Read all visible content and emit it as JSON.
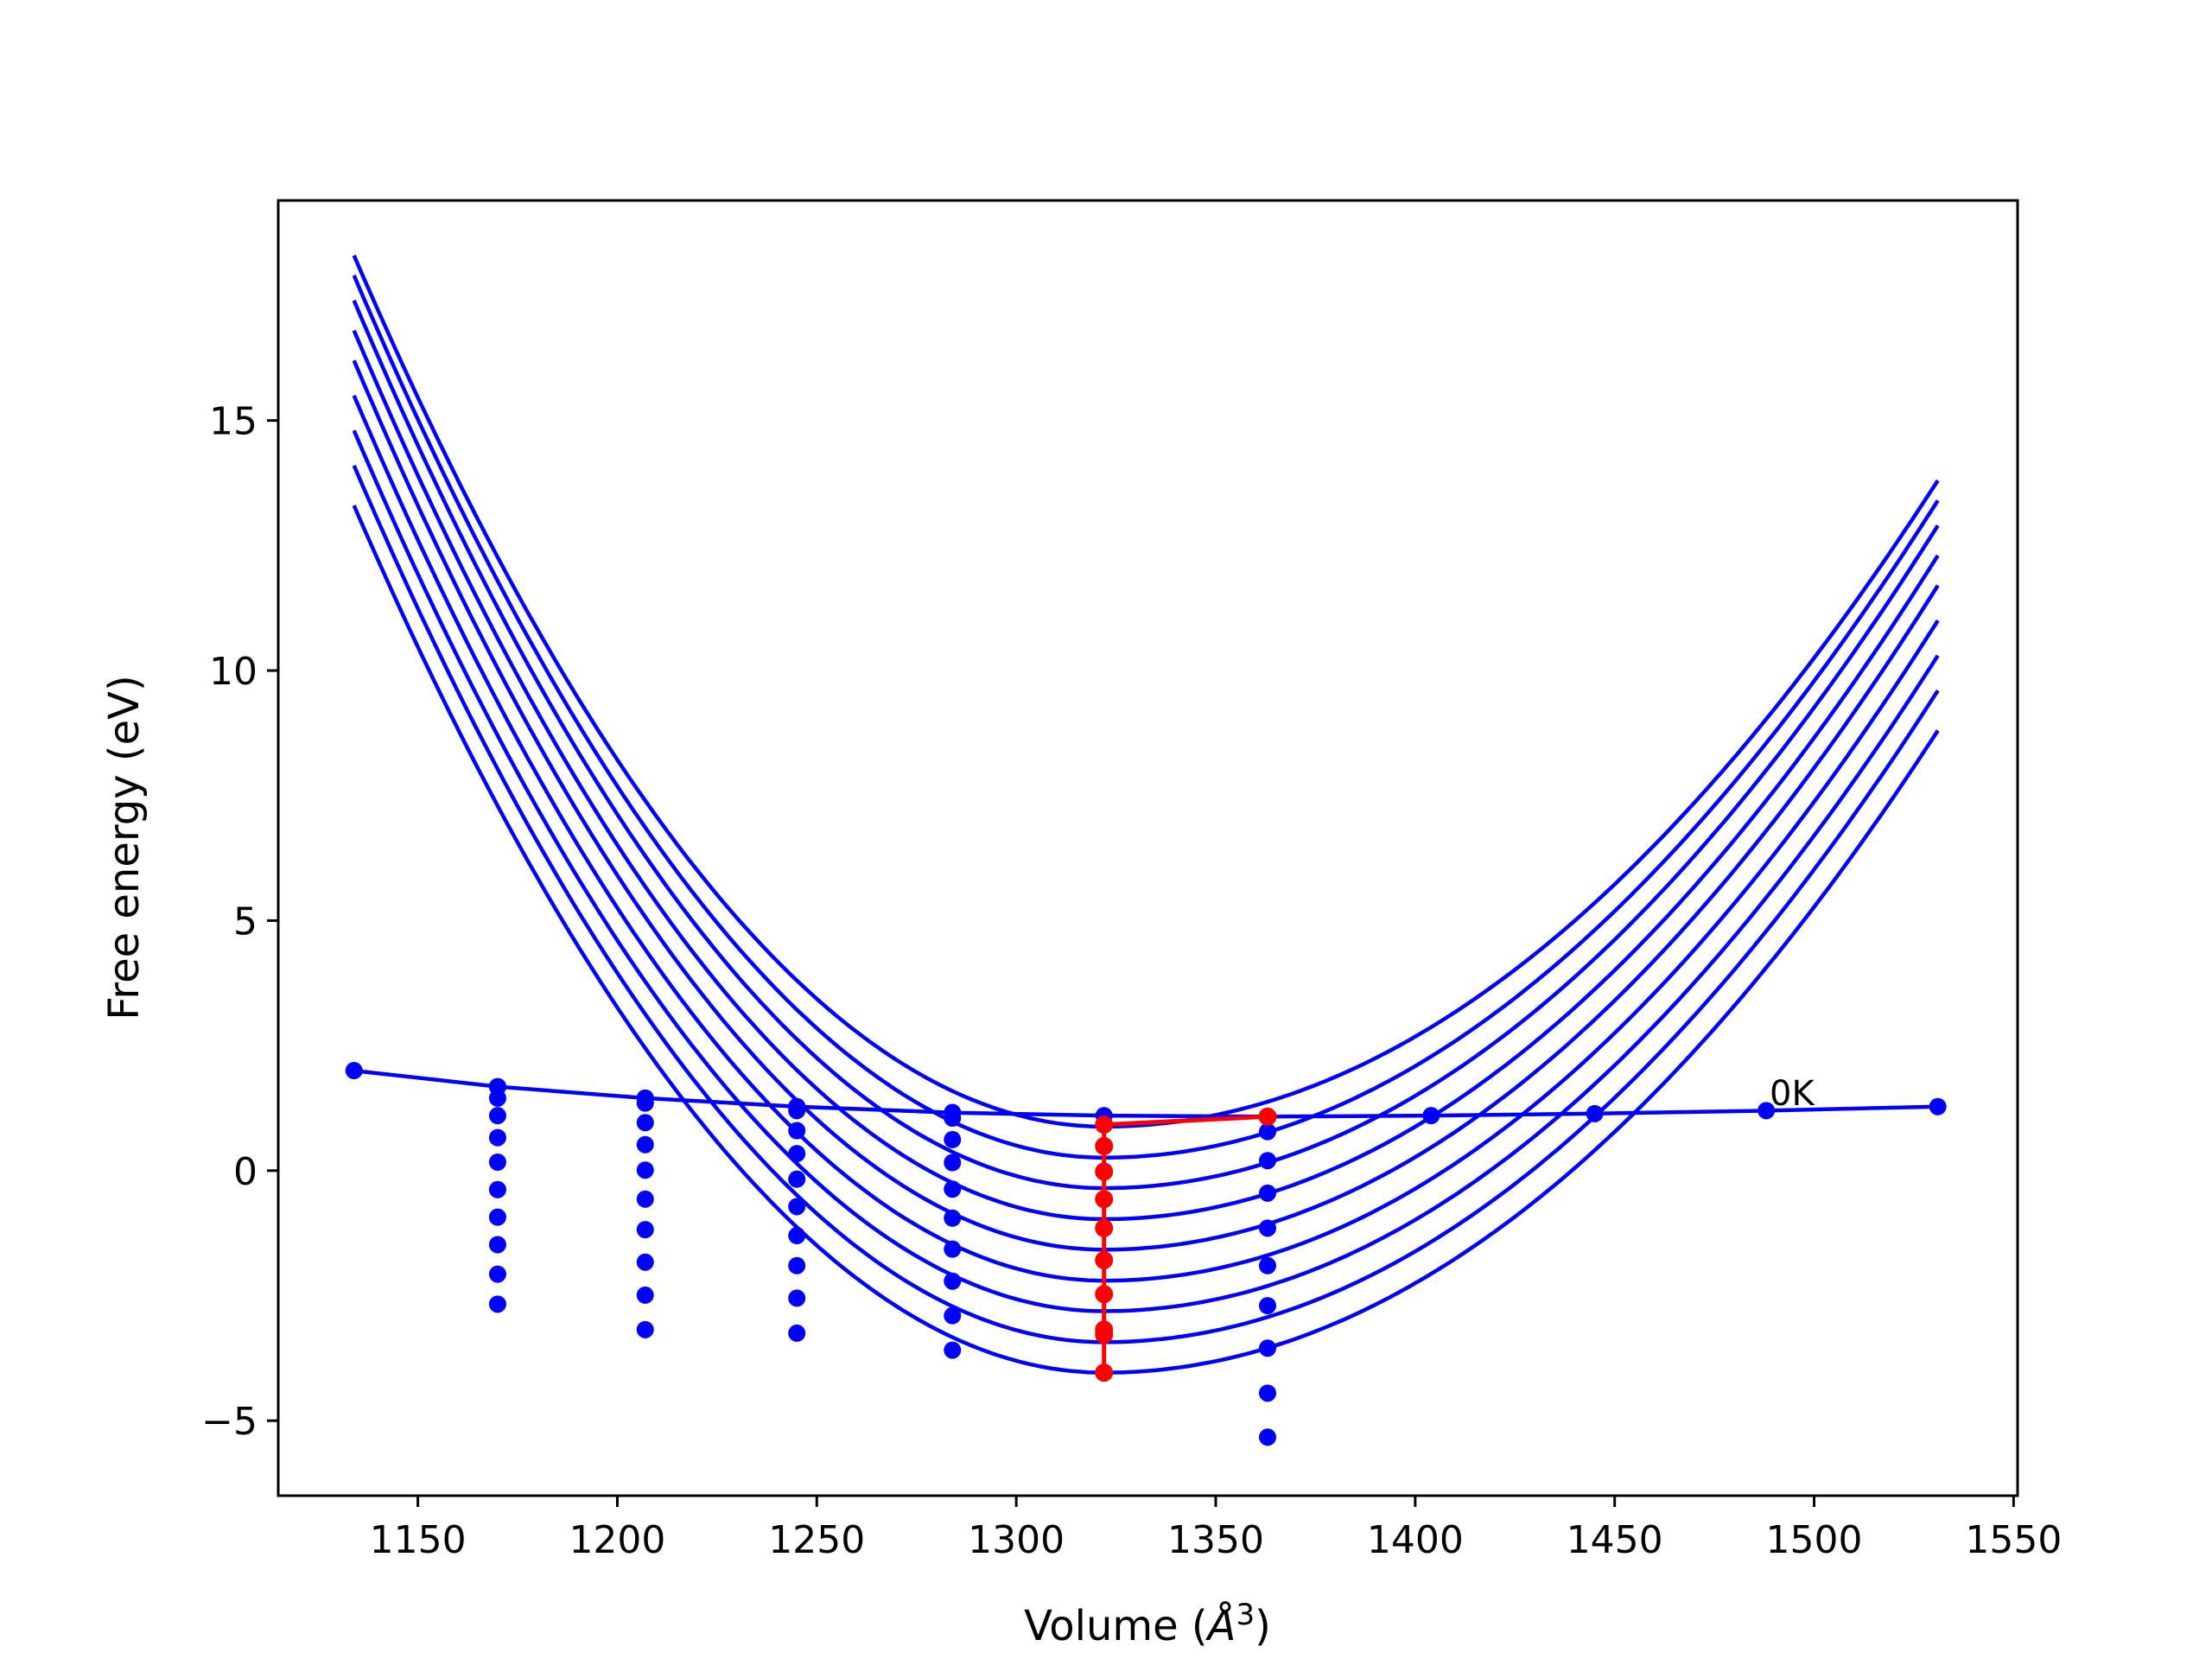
{
  "chart_data": {
    "type": "line",
    "title": "",
    "xlabel_main": "Volume (",
    "xlabel_unit": "Å",
    "xlabel_sup": "3",
    "xlabel_close": ")",
    "ylabel": "Free energy (eV)",
    "xlim": [
      1115,
      1551
    ],
    "ylim": [
      -6.5,
      19.4
    ],
    "xticks": [
      1150,
      1200,
      1250,
      1300,
      1350,
      1400,
      1450,
      1500,
      1550
    ],
    "yticks": [
      -5,
      0,
      5,
      10,
      15
    ],
    "grid": false,
    "colors": {
      "curves": "#0000ff",
      "minima": "#ff0000",
      "axes": "#000000"
    },
    "curve_x_range": [
      1134,
      1531
    ],
    "curves": [
      {
        "vmin": 1322,
        "fmin": 0.88,
        "f_left": 18.3,
        "f_right": 13.8
      },
      {
        "vmin": 1322,
        "fmin": 0.26,
        "f_left": 17.9,
        "f_right": 13.4
      },
      {
        "vmin": 1322,
        "fmin": -0.35,
        "f_left": 17.4,
        "f_right": 12.9
      },
      {
        "vmin": 1322,
        "fmin": -0.97,
        "f_left": 16.8,
        "f_right": 12.3
      },
      {
        "vmin": 1322,
        "fmin": -1.58,
        "f_left": 16.2,
        "f_right": 11.7
      },
      {
        "vmin": 1322,
        "fmin": -2.2,
        "f_left": 15.5,
        "f_right": 11.0
      },
      {
        "vmin": 1322,
        "fmin": -2.81,
        "f_left": 14.8,
        "f_right": 10.3
      },
      {
        "vmin": 1322,
        "fmin": -3.43,
        "f_left": 14.1,
        "f_right": 9.6
      },
      {
        "vmin": 1322,
        "fmin": -4.04,
        "f_left": 13.3,
        "f_right": 8.8
      }
    ],
    "zero_k_line": {
      "label": "0K",
      "x": [
        1134,
        1170,
        1207,
        1245,
        1284,
        1322,
        1363,
        1404,
        1445,
        1488,
        1531
      ],
      "y": [
        2.0,
        1.68,
        1.45,
        1.28,
        1.16,
        1.1,
        1.08,
        1.1,
        1.14,
        1.2,
        1.28
      ]
    },
    "point_columns": [
      {
        "x": 1170,
        "y": [
          1.68,
          1.45,
          1.1,
          0.66,
          0.17,
          -0.38,
          -0.93,
          -1.48,
          -2.07,
          -2.67
        ]
      },
      {
        "x": 1207,
        "y": [
          1.45,
          1.35,
          0.96,
          0.52,
          0.01,
          -0.57,
          -1.18,
          -1.83,
          -2.49,
          -3.18
        ]
      },
      {
        "x": 1245,
        "y": [
          1.28,
          1.2,
          0.8,
          0.34,
          -0.17,
          -0.72,
          -1.3,
          -1.9,
          -2.55,
          -3.25
        ]
      },
      {
        "x": 1284,
        "y": [
          1.16,
          1.05,
          0.62,
          0.16,
          -0.37,
          -0.95,
          -1.57,
          -2.21,
          -2.9,
          -3.59
        ]
      },
      {
        "x": 1363,
        "y": [
          1.08,
          0.78,
          0.2,
          -0.45,
          -1.15,
          -1.9,
          -2.7,
          -3.55,
          -4.45,
          -5.33
        ]
      }
    ],
    "minima_path": {
      "x": [
        1363,
        1322,
        1322,
        1322,
        1322,
        1322,
        1322,
        1322,
        1322,
        1322,
        1322
      ],
      "y": [
        1.08,
        0.92,
        0.49,
        -0.02,
        -0.57,
        -1.15,
        -1.79,
        -2.47,
        -3.18,
        -3.28,
        -4.04
      ]
    }
  }
}
